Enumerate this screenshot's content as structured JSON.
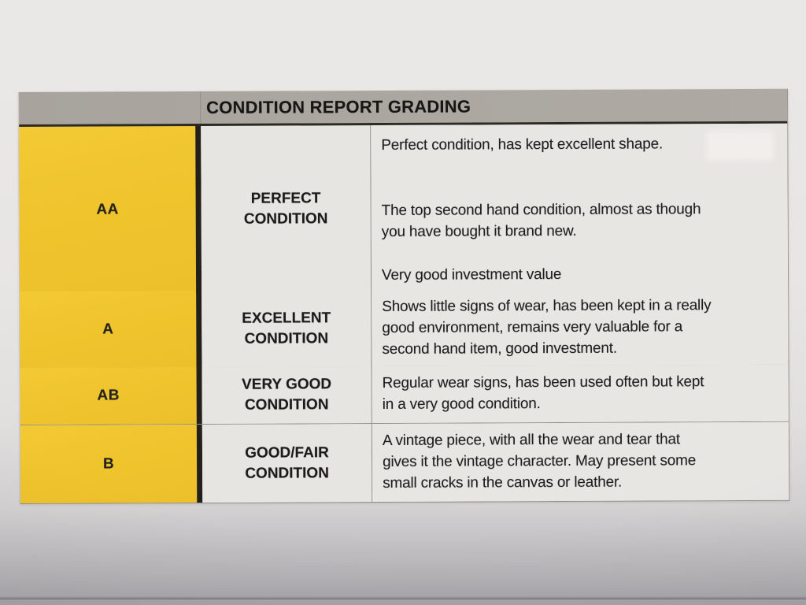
{
  "table": {
    "title": "CONDITION REPORT GRADING",
    "rows": [
      {
        "grade": "AA",
        "label": "PERFECT\nCONDITION",
        "paragraphs": [
          "Perfect condition, has kept excellent shape.",
          "The top second hand condition, almost as though\nyou have bought it brand new.",
          "Very good investment value"
        ]
      },
      {
        "grade": "A",
        "label": "EXCELLENT\nCONDITION",
        "paragraphs": [
          "Shows little signs of wear, has been kept in a really\ngood environment, remains very valuable for a\nsecond hand item, good investment."
        ]
      },
      {
        "grade": "AB",
        "label": "VERY GOOD\nCONDITION",
        "paragraphs": [
          "Regular wear signs, has been used often but kept\nin a very good condition."
        ]
      },
      {
        "grade": "B",
        "label": "GOOD/FAIR\nCONDITION",
        "paragraphs": [
          "A vintage piece, with all the wear and tear that\ngives it the vintage character. May present some\nsmall cracks in the canvas or leather."
        ]
      }
    ]
  },
  "colors": {
    "grade_column_yellow": "#EFC42D",
    "header_bar_gray": "#ABA6A0",
    "cell_background_gray": "#E8E6E3",
    "paper_background": "#E8E6E4",
    "divider_black": "#23201A",
    "text_black": "#1E1D1B"
  }
}
